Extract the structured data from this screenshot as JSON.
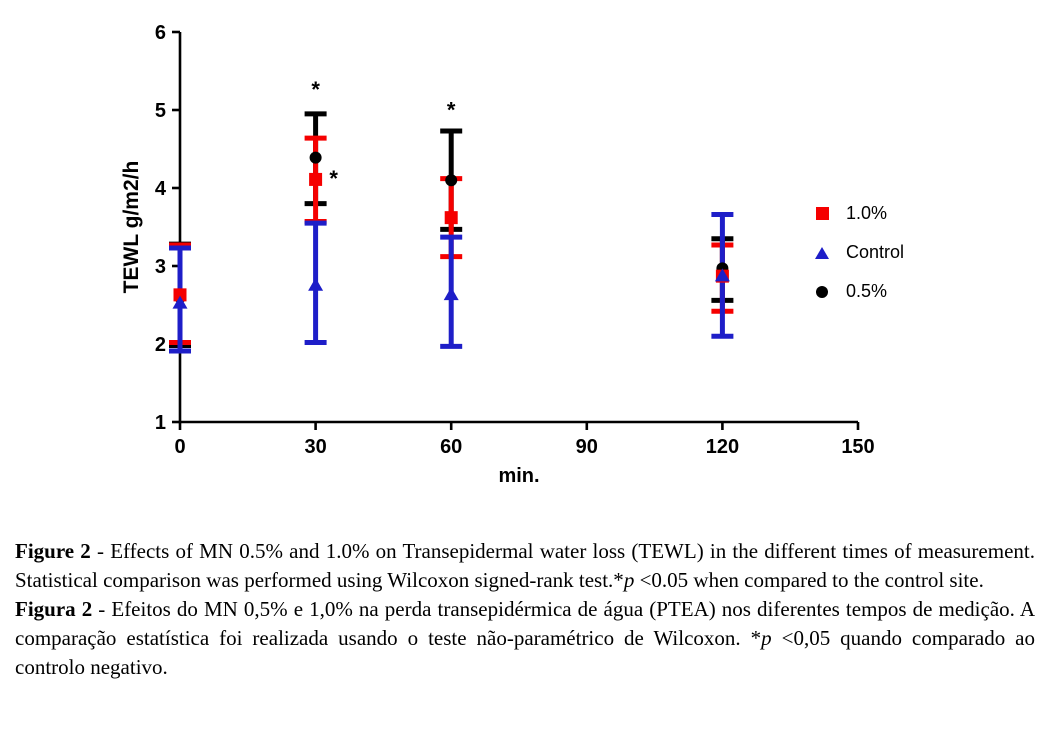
{
  "chart_data": {
    "type": "scatter",
    "title": "",
    "xlabel": "min.",
    "ylabel": "TEWL g/m2/h",
    "xlim": [
      0,
      150
    ],
    "ylim": [
      1,
      6
    ],
    "xticks": [
      0,
      30,
      60,
      90,
      120,
      150
    ],
    "yticks": [
      1,
      2,
      3,
      4,
      5,
      6
    ],
    "grid": false,
    "x": [
      0,
      30,
      60,
      120
    ],
    "series": [
      {
        "name": "0.5%",
        "marker": "circle",
        "color": "#000000",
        "means": [
          2.6,
          4.39,
          4.1,
          2.97
        ],
        "lower": [
          1.98,
          3.8,
          3.47,
          2.56
        ],
        "upper": [
          3.28,
          4.95,
          4.73,
          3.35
        ]
      },
      {
        "name": "1.0%",
        "marker": "square",
        "color": "#f50000",
        "means": [
          2.63,
          4.11,
          3.62,
          2.87
        ],
        "lower": [
          2.02,
          3.57,
          3.12,
          2.42
        ],
        "upper": [
          3.27,
          4.64,
          4.12,
          3.27
        ]
      },
      {
        "name": "Control",
        "marker": "triangle",
        "color": "#1e1ec8",
        "means": [
          2.53,
          2.76,
          2.64,
          2.88
        ],
        "lower": [
          1.91,
          2.02,
          1.97,
          2.1
        ],
        "upper": [
          3.23,
          3.55,
          3.37,
          3.66
        ]
      }
    ],
    "legend": [
      {
        "label": "1.0%",
        "marker": "square",
        "color": "#f50000"
      },
      {
        "label": "Control",
        "marker": "triangle",
        "color": "#1e1ec8"
      },
      {
        "label": "0.5%",
        "marker": "circle",
        "color": "#000000"
      }
    ],
    "legend_position": "right",
    "annotations": [
      {
        "text": "*",
        "x": 30,
        "y": 5.32
      },
      {
        "text": "*",
        "x": 34,
        "y": 4.18
      },
      {
        "text": "*",
        "x": 60,
        "y": 5.06
      }
    ]
  },
  "caption": {
    "en": {
      "figure_label": "Figure 2",
      "text1": " - Effects of MN 0.5% and 1.0% on Transepidermal water loss (TEWL) in the different times of measurement. Statistical comparison was performed using Wilcoxon signed-rank test.*",
      "p_italic": "p",
      "text2": " <0.05 when compared to the control site."
    },
    "pt": {
      "figure_label": "Figura 2",
      "text1": " - Efeitos do MN 0,5% e 1,0% na perda transepidérmica de água (PTEA) nos diferentes tempos de medição. A comparação estatística foi realizada usando o teste não-paramétrico de Wilcoxon. *",
      "p_italic": "p",
      "text2": " <0,05 quando comparado ao controlo negativo."
    }
  }
}
